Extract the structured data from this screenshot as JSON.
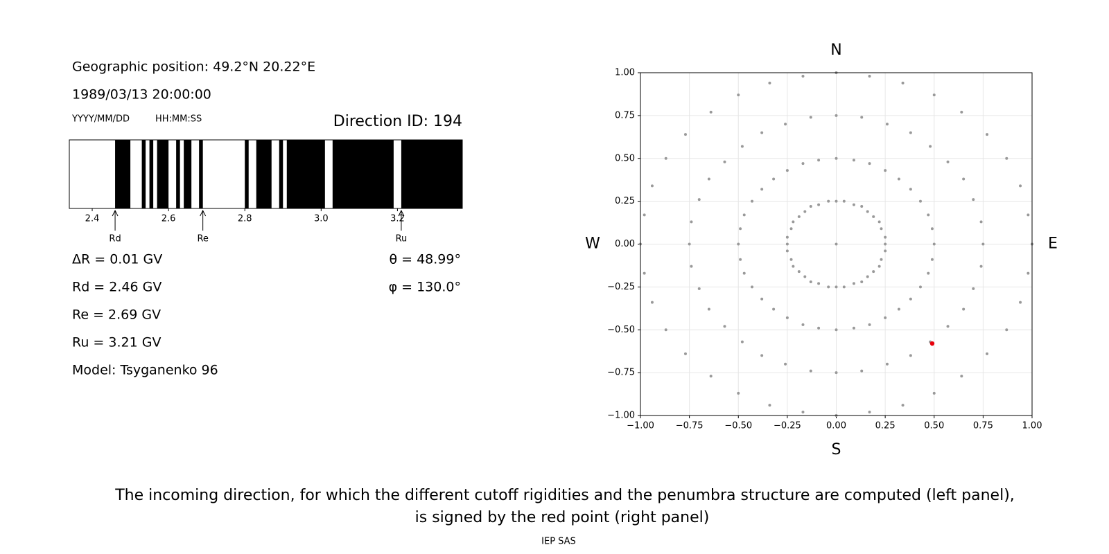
{
  "header": {
    "position": "Geographic position: 49.2°N 20.22°E",
    "datetime": "1989/03/13 20:00:00",
    "date_format": "YYYY/MM/DD",
    "time_format": "HH:MM:SS",
    "direction": "Direction ID: 194"
  },
  "penumbra": {
    "type": "barcode",
    "forbidden_bands": [
      [
        2.46,
        2.5
      ],
      [
        2.53,
        2.54
      ],
      [
        2.55,
        2.56
      ],
      [
        2.57,
        2.6
      ],
      [
        2.62,
        2.63
      ],
      [
        2.64,
        2.66
      ],
      [
        2.68,
        2.69
      ],
      [
        2.8,
        2.81
      ],
      [
        2.83,
        2.87
      ],
      [
        2.89,
        2.9
      ],
      [
        2.91,
        3.01
      ],
      [
        3.03,
        3.19
      ],
      [
        3.21,
        3.37
      ]
    ],
    "xlim": [
      2.34,
      3.37
    ],
    "xticks": [
      2.4,
      2.6,
      2.8,
      {
        "value": 3,
        "label": "3.0"
      },
      3.2
    ],
    "markers": [
      {
        "label": "Rd",
        "value": 2.46
      },
      {
        "label": "Re",
        "value": 2.69
      },
      {
        "label": "Ru",
        "value": 3.21
      }
    ]
  },
  "results": [
    "ΔR = 0.01 GV",
    "Rd = 2.46 GV",
    "Re = 2.69 GV",
    "Ru = 3.21 GV",
    "Model: Tsyganenko 96"
  ],
  "angles": [
    "θ = 48.99°",
    "φ = 130.0°"
  ],
  "chart_data": {
    "type": "scatter",
    "compass": {
      "north": "N",
      "south": "S",
      "west": "W",
      "east": "E"
    },
    "xlim": [
      -1,
      1
    ],
    "ylim": [
      -1,
      1
    ],
    "grid": true,
    "xticks": [
      {
        "value": -1,
        "label": "−1.00"
      },
      {
        "value": -0.75,
        "label": "−0.75"
      },
      {
        "value": -0.5,
        "label": "−0.50"
      },
      {
        "value": -0.25,
        "label": "−0.25"
      },
      {
        "value": 0,
        "label": "0.00"
      },
      0.25,
      {
        "value": 0.5,
        "label": "0.50"
      },
      0.75,
      {
        "value": 1,
        "label": "1.00"
      }
    ],
    "yticks": [
      {
        "value": -1,
        "label": "−1.00"
      },
      {
        "value": -0.75,
        "label": "−0.75"
      },
      {
        "value": -0.5,
        "label": "−0.50"
      },
      {
        "value": -0.25,
        "label": "−0.25"
      },
      {
        "value": 0,
        "label": "0.00"
      },
      0.25,
      {
        "value": 0.5,
        "label": "0.50"
      },
      0.75,
      {
        "value": 1,
        "label": "1.00"
      }
    ],
    "series": [
      {
        "color": "#999999",
        "x": [
          0,
          0.25,
          0.25,
          0.23,
          0.22,
          0.19,
          0.16,
          0.13,
          0.09,
          0.04,
          0,
          -0.04,
          -0.09,
          -0.13,
          -0.16,
          -0.19,
          -0.22,
          -0.23,
          -0.25,
          -0.25,
          -0.25,
          -0.23,
          -0.22,
          -0.19,
          -0.16,
          -0.13,
          -0.09,
          -0.04,
          0,
          0.04,
          0.09,
          0.13,
          0.16,
          0.19,
          0.22,
          0.23,
          0.25,
          0.5,
          0.49,
          0.47,
          0.43,
          0.38,
          0.32,
          0.25,
          0.17,
          0.09,
          0,
          -0.09,
          -0.17,
          -0.25,
          -0.32,
          -0.38,
          -0.43,
          -0.47,
          -0.49,
          -0.5,
          -0.49,
          -0.47,
          -0.43,
          -0.38,
          -0.32,
          -0.25,
          -0.17,
          -0.09,
          0,
          0.09,
          0.17,
          0.25,
          0.32,
          0.38,
          0.43,
          0.47,
          0.49,
          0.75,
          0.74,
          0.7,
          0.65,
          0.57,
          0.48,
          0.38,
          0.26,
          0.13,
          0,
          -0.13,
          -0.26,
          -0.38,
          -0.48,
          -0.57,
          -0.65,
          -0.7,
          -0.74,
          -0.75,
          -0.74,
          -0.7,
          -0.65,
          -0.57,
          -0.48,
          -0.38,
          -0.26,
          -0.13,
          0,
          0.13,
          0.26,
          0.38,
          0.48,
          0.57,
          0.65,
          0.7,
          0.74,
          1,
          0.98,
          0.94,
          0.87,
          0.77,
          0.64,
          0.5,
          0.34,
          0.17,
          0,
          -0.17,
          -0.34,
          -0.5,
          -0.64,
          -0.77,
          -0.87,
          -0.94,
          -0.98,
          -1,
          -0.98,
          -0.94,
          -0.87,
          -0.77,
          -0.64,
          -0.5,
          -0.34,
          -0.17,
          0,
          0.17,
          0.34,
          0.5,
          0.64,
          0.77,
          0.87,
          0.94,
          0.98
        ],
        "y": [
          0,
          0,
          0.04,
          0.09,
          0.13,
          0.16,
          0.19,
          0.22,
          0.23,
          0.25,
          0.25,
          0.25,
          0.23,
          0.22,
          0.19,
          0.16,
          0.13,
          0.09,
          0.04,
          0,
          -0.04,
          -0.09,
          -0.13,
          -0.16,
          -0.19,
          -0.22,
          -0.23,
          -0.25,
          -0.25,
          -0.25,
          -0.23,
          -0.22,
          -0.19,
          -0.16,
          -0.13,
          -0.09,
          -0.04,
          0,
          0.09,
          0.17,
          0.25,
          0.32,
          0.38,
          0.43,
          0.47,
          0.49,
          0.5,
          0.49,
          0.47,
          0.43,
          0.38,
          0.32,
          0.25,
          0.17,
          0.09,
          0,
          -0.09,
          -0.17,
          -0.25,
          -0.32,
          -0.38,
          -0.43,
          -0.47,
          -0.49,
          -0.5,
          -0.49,
          -0.47,
          -0.43,
          -0.38,
          -0.32,
          -0.25,
          -0.17,
          -0.09,
          0,
          0.13,
          0.26,
          0.38,
          0.48,
          0.57,
          0.65,
          0.7,
          0.74,
          0.75,
          0.74,
          0.7,
          0.65,
          0.57,
          0.48,
          0.38,
          0.26,
          0.13,
          0,
          -0.13,
          -0.26,
          -0.38,
          -0.48,
          -0.57,
          -0.65,
          -0.7,
          -0.74,
          -0.75,
          -0.74,
          -0.7,
          -0.65,
          -0.57,
          -0.48,
          -0.38,
          -0.26,
          -0.13,
          0,
          0.17,
          0.34,
          0.5,
          0.64,
          0.77,
          0.87,
          0.94,
          0.98,
          1,
          0.98,
          0.94,
          0.87,
          0.77,
          0.64,
          0.5,
          0.34,
          0.17,
          0,
          -0.17,
          -0.34,
          -0.5,
          -0.64,
          -0.77,
          -0.87,
          -0.94,
          -0.98,
          -1,
          -0.98,
          -0.94,
          -0.87,
          -0.77,
          -0.64,
          -0.5,
          -0.34,
          -0.17
        ]
      },
      {
        "color": "#e8000b",
        "x": [
          0.49
        ],
        "y": [
          -0.58
        ]
      }
    ]
  },
  "caption": [
    "The incoming direction, for which the different cutoff rigidities and the penumbra structure are computed (left panel),",
    "is signed by the red point (right panel)"
  ],
  "footer": "IEP SAS"
}
